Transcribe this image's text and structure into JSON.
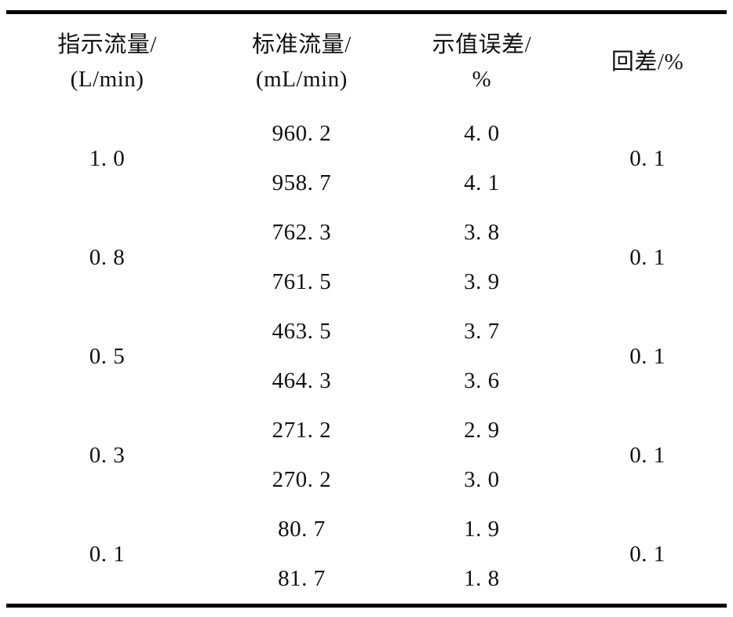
{
  "style": {
    "rule_color": "#000000",
    "text_color": "#111111",
    "background_color": "#ffffff"
  },
  "table": {
    "headers": [
      {
        "line1": "指示流量/",
        "line2": "(L/min)"
      },
      {
        "line1": "标准流量/",
        "line2": "(mL/min)"
      },
      {
        "line1": "示值误差/",
        "line2": "%"
      },
      {
        "line1": "回差/%"
      }
    ],
    "groups": [
      {
        "indicated": "1. 0",
        "readings": [
          {
            "standard": "960. 2",
            "error": "4. 0"
          },
          {
            "standard": "958. 7",
            "error": "4. 1"
          }
        ],
        "hysteresis": "0. 1"
      },
      {
        "indicated": "0. 8",
        "readings": [
          {
            "standard": "762. 3",
            "error": "3. 8"
          },
          {
            "standard": "761. 5",
            "error": "3. 9"
          }
        ],
        "hysteresis": "0. 1"
      },
      {
        "indicated": "0. 5",
        "readings": [
          {
            "standard": "463. 5",
            "error": "3. 7"
          },
          {
            "standard": "464. 3",
            "error": "3. 6"
          }
        ],
        "hysteresis": "0. 1"
      },
      {
        "indicated": "0. 3",
        "readings": [
          {
            "standard": "271. 2",
            "error": "2. 9"
          },
          {
            "standard": "270. 2",
            "error": "3. 0"
          }
        ],
        "hysteresis": "0. 1"
      },
      {
        "indicated": "0. 1",
        "readings": [
          {
            "standard": "80. 7",
            "error": "1. 9"
          },
          {
            "standard": "81. 7",
            "error": "1. 8"
          }
        ],
        "hysteresis": "0. 1"
      }
    ]
  }
}
